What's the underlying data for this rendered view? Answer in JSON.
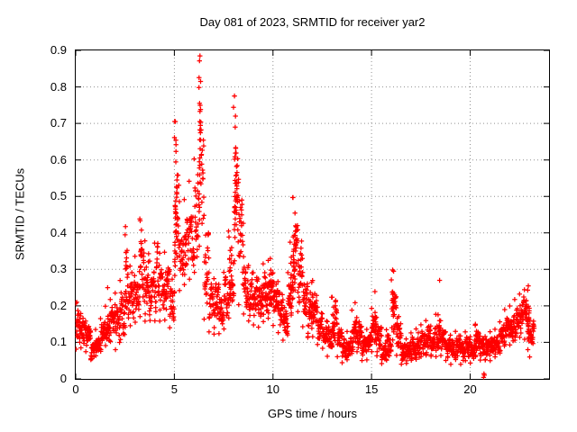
{
  "title": "Day 081 of 2023, SRMTID for receiver yar2",
  "x_axis": {
    "label": "GPS time / hours",
    "tick_labels": [
      "0",
      "5",
      "10",
      "15",
      "20"
    ],
    "tick_values": [
      0,
      5,
      10,
      15,
      20
    ],
    "range": [
      0,
      24
    ]
  },
  "y_axis": {
    "label": "SRMTID / TECUs",
    "tick_labels": [
      "0",
      "0.1",
      "0.2",
      "0.3",
      "0.4",
      "0.5",
      "0.6",
      "0.7",
      "0.8",
      "0.9"
    ],
    "tick_values": [
      0,
      0.1,
      0.2,
      0.3,
      0.4,
      0.5,
      0.6,
      0.7,
      0.8,
      0.9
    ],
    "range": [
      0,
      0.9
    ]
  },
  "colors": {
    "marker": "#ff0000",
    "grid": "#909090",
    "axis": "#000000",
    "text": "#000000",
    "background": "#ffffff"
  },
  "chart_data": {
    "type": "scatter",
    "title": "Day 081 of 2023, SRMTID for receiver yar2",
    "xlabel": "GPS time / hours",
    "ylabel": "SRMTID / TECUs",
    "xlim": [
      0,
      24
    ],
    "ylim": [
      0,
      0.9
    ],
    "grid": "dotted",
    "legend": "none",
    "marker": "plus",
    "marker_color": "#ff0000",
    "x_data_extent": [
      0,
      23.2
    ],
    "y_max_observed": 0.89,
    "envelope_bin_hours": 0.25,
    "points_per_bin": 26,
    "envelope": [
      [
        0.08,
        0.21
      ],
      [
        0.08,
        0.18
      ],
      [
        0.07,
        0.16
      ],
      [
        0.05,
        0.13
      ],
      [
        0.06,
        0.14
      ],
      [
        0.07,
        0.17
      ],
      [
        0.09,
        0.2
      ],
      [
        0.1,
        0.22
      ],
      [
        0.08,
        0.24
      ],
      [
        0.1,
        0.28
      ],
      [
        0.14,
        0.4
      ],
      [
        0.14,
        0.32
      ],
      [
        0.15,
        0.34
      ],
      [
        0.16,
        0.44
      ],
      [
        0.15,
        0.38
      ],
      [
        0.15,
        0.33
      ],
      [
        0.15,
        0.38
      ],
      [
        0.15,
        0.35
      ],
      [
        0.16,
        0.35
      ],
      [
        0.14,
        0.3
      ],
      [
        0.22,
        0.68
      ],
      [
        0.24,
        0.5
      ],
      [
        0.25,
        0.5
      ],
      [
        0.27,
        0.55
      ],
      [
        0.28,
        0.62
      ],
      [
        0.35,
        0.85
      ],
      [
        0.15,
        0.45
      ],
      [
        0.12,
        0.3
      ],
      [
        0.12,
        0.28
      ],
      [
        0.12,
        0.26
      ],
      [
        0.13,
        0.3
      ],
      [
        0.16,
        0.42
      ],
      [
        0.22,
        0.75
      ],
      [
        0.2,
        0.55
      ],
      [
        0.17,
        0.34
      ],
      [
        0.15,
        0.32
      ],
      [
        0.14,
        0.3
      ],
      [
        0.14,
        0.28
      ],
      [
        0.15,
        0.32
      ],
      [
        0.16,
        0.33
      ],
      [
        0.14,
        0.3
      ],
      [
        0.12,
        0.27
      ],
      [
        0.1,
        0.22
      ],
      [
        0.14,
        0.3
      ],
      [
        0.22,
        0.5
      ],
      [
        0.18,
        0.42
      ],
      [
        0.14,
        0.3
      ],
      [
        0.11,
        0.26
      ],
      [
        0.11,
        0.27
      ],
      [
        0.09,
        0.2
      ],
      [
        0.08,
        0.18
      ],
      [
        0.06,
        0.16
      ],
      [
        0.09,
        0.23
      ],
      [
        0.06,
        0.15
      ],
      [
        0.04,
        0.12
      ],
      [
        0.05,
        0.13
      ],
      [
        0.07,
        0.19
      ],
      [
        0.07,
        0.17
      ],
      [
        0.05,
        0.13
      ],
      [
        0.05,
        0.14
      ],
      [
        0.07,
        0.2
      ],
      [
        0.06,
        0.17
      ],
      [
        0.04,
        0.12
      ],
      [
        0.05,
        0.14
      ],
      [
        0.08,
        0.28
      ],
      [
        0.06,
        0.2
      ],
      [
        0.04,
        0.12
      ],
      [
        0.04,
        0.11
      ],
      [
        0.05,
        0.13
      ],
      [
        0.05,
        0.14
      ],
      [
        0.06,
        0.15
      ],
      [
        0.06,
        0.16
      ],
      [
        0.06,
        0.15
      ],
      [
        0.06,
        0.18
      ],
      [
        0.06,
        0.16
      ],
      [
        0.05,
        0.13
      ],
      [
        0.04,
        0.12
      ],
      [
        0.05,
        0.13
      ],
      [
        0.04,
        0.12
      ],
      [
        0.05,
        0.13
      ],
      [
        0.04,
        0.12
      ],
      [
        0.06,
        0.15
      ],
      [
        0.05,
        0.12
      ],
      [
        0.05,
        0.12
      ],
      [
        0.05,
        0.13
      ],
      [
        0.06,
        0.14
      ],
      [
        0.07,
        0.16
      ],
      [
        0.09,
        0.19
      ],
      [
        0.09,
        0.2
      ],
      [
        0.1,
        0.22
      ],
      [
        0.11,
        0.24
      ],
      [
        0.1,
        0.25
      ],
      [
        0.06,
        0.2
      ]
    ],
    "spikes": [
      [
        5.05,
        0.3,
        0.71,
        16
      ],
      [
        5.12,
        0.45,
        0.65,
        8
      ],
      [
        6.28,
        0.45,
        0.8,
        10
      ],
      [
        6.31,
        0.55,
        0.885,
        7
      ],
      [
        8.08,
        0.3,
        0.78,
        14
      ],
      [
        8.16,
        0.42,
        0.62,
        8
      ],
      [
        11.05,
        0.28,
        0.5,
        12
      ],
      [
        11.15,
        0.3,
        0.46,
        8
      ],
      [
        16.1,
        0.1,
        0.3,
        10
      ],
      [
        22.95,
        0.08,
        0.25,
        10
      ],
      [
        3.3,
        0.3,
        0.44,
        8
      ],
      [
        2.55,
        0.3,
        0.42,
        6
      ],
      [
        15.2,
        0.1,
        0.24,
        8
      ],
      [
        14.2,
        0.1,
        0.21,
        6
      ],
      [
        13.0,
        0.12,
        0.23,
        6
      ],
      [
        9.9,
        0.2,
        0.33,
        8
      ],
      [
        12.0,
        0.15,
        0.27,
        6
      ],
      [
        18.4,
        0.08,
        0.18,
        8
      ],
      [
        20.3,
        0.06,
        0.15,
        6
      ],
      [
        7.8,
        0.2,
        0.4,
        8
      ],
      [
        10.9,
        0.2,
        0.38,
        8
      ]
    ],
    "extra_points": [
      [
        0.05,
        0.21
      ],
      [
        1.62,
        0.25
      ],
      [
        20.68,
        0.004
      ],
      [
        20.72,
        0.01
      ],
      [
        20.7,
        0.014
      ],
      [
        18.45,
        0.27
      ],
      [
        6.3,
        0.885
      ],
      [
        6.33,
        0.815
      ],
      [
        6.28,
        0.755
      ],
      [
        8.05,
        0.775
      ],
      [
        8.1,
        0.72
      ],
      [
        5.05,
        0.705
      ],
      [
        16.12,
        0.295
      ],
      [
        22.95,
        0.255
      ]
    ]
  }
}
